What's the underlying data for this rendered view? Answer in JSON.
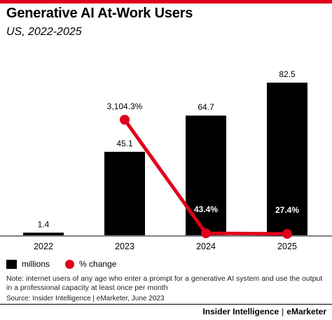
{
  "title": "Generative AI At-Work Users",
  "subtitle": "US, 2022-2025",
  "legend": {
    "bars": "millions",
    "line": "% change"
  },
  "note": "Note: internet users of any age who enter a prompt for a generative AI system and use the output in a professional capacity at least once per month",
  "source": "Source: Insider Intelligence | eMarketer, June 2023",
  "footer": {
    "brand_left": "Insider Intelligence",
    "separator": "|",
    "brand_right": "eMarketer"
  },
  "colors": {
    "bar": "#000000",
    "line": "#e0001b",
    "accent": "#e0001b"
  },
  "chart_data": {
    "type": "bar",
    "categories": [
      "2022",
      "2023",
      "2024",
      "2025"
    ],
    "series": [
      {
        "name": "millions",
        "type": "bar",
        "values": [
          1.4,
          45.1,
          64.7,
          82.5
        ],
        "labels": [
          "1.4",
          "45.1",
          "64.7",
          "82.5"
        ]
      },
      {
        "name": "% change",
        "type": "line",
        "values": [
          null,
          3104.3,
          43.4,
          27.4
        ],
        "labels": [
          "",
          "3,104.3%",
          "43.4%",
          "27.4%"
        ]
      }
    ],
    "title": "Generative AI At-Work Users",
    "subtitle": "US, 2022-2025",
    "grid": false,
    "legend_position": "bottom-left"
  }
}
